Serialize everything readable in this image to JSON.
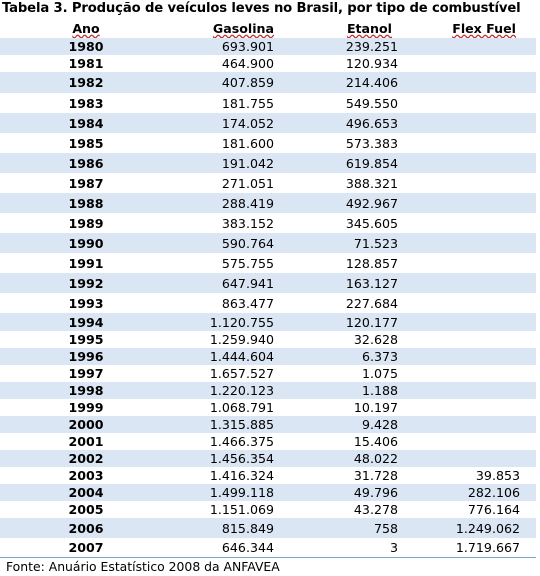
{
  "title": "Tabela 3. Produção de veículos leves no Brasil, por tipo de combustível",
  "columns": [
    "Ano",
    "Gasolina",
    "Etanol",
    "Flex Fuel"
  ],
  "rows": [
    {
      "ano": "1980",
      "gasolina": "693.901",
      "etanol": "239.251",
      "flex": ""
    },
    {
      "ano": "1981",
      "gasolina": "464.900",
      "etanol": "120.934",
      "flex": ""
    },
    {
      "ano": "1982",
      "gasolina": "407.859",
      "etanol": "214.406",
      "flex": ""
    },
    {
      "ano": "1983",
      "gasolina": "181.755",
      "etanol": "549.550",
      "flex": ""
    },
    {
      "ano": "1984",
      "gasolina": "174.052",
      "etanol": "496.653",
      "flex": ""
    },
    {
      "ano": "1985",
      "gasolina": "181.600",
      "etanol": "573.383",
      "flex": ""
    },
    {
      "ano": "1986",
      "gasolina": "191.042",
      "etanol": "619.854",
      "flex": ""
    },
    {
      "ano": "1987",
      "gasolina": "271.051",
      "etanol": "388.321",
      "flex": ""
    },
    {
      "ano": "1988",
      "gasolina": "288.419",
      "etanol": "492.967",
      "flex": ""
    },
    {
      "ano": "1989",
      "gasolina": "383.152",
      "etanol": "345.605",
      "flex": ""
    },
    {
      "ano": "1990",
      "gasolina": "590.764",
      "etanol": "71.523",
      "flex": ""
    },
    {
      "ano": "1991",
      "gasolina": "575.755",
      "etanol": "128.857",
      "flex": ""
    },
    {
      "ano": "1992",
      "gasolina": "647.941",
      "etanol": "163.127",
      "flex": ""
    },
    {
      "ano": "1993",
      "gasolina": "863.477",
      "etanol": "227.684",
      "flex": ""
    },
    {
      "ano": "1994",
      "gasolina": "1.120.755",
      "etanol": "120.177",
      "flex": ""
    },
    {
      "ano": "1995",
      "gasolina": "1.259.940",
      "etanol": "32.628",
      "flex": ""
    },
    {
      "ano": "1996",
      "gasolina": "1.444.604",
      "etanol": "6.373",
      "flex": ""
    },
    {
      "ano": "1997",
      "gasolina": "1.657.527",
      "etanol": "1.075",
      "flex": ""
    },
    {
      "ano": "1998",
      "gasolina": "1.220.123",
      "etanol": "1.188",
      "flex": ""
    },
    {
      "ano": "1999",
      "gasolina": "1.068.791",
      "etanol": "10.197",
      "flex": ""
    },
    {
      "ano": "2000",
      "gasolina": "1.315.885",
      "etanol": "9.428",
      "flex": ""
    },
    {
      "ano": "2001",
      "gasolina": "1.466.375",
      "etanol": "15.406",
      "flex": ""
    },
    {
      "ano": "2002",
      "gasolina": "1.456.354",
      "etanol": "48.022",
      "flex": ""
    },
    {
      "ano": "2003",
      "gasolina": "1.416.324",
      "etanol": "31.728",
      "flex": "39.853"
    },
    {
      "ano": "2004",
      "gasolina": "1.499.118",
      "etanol": "49.796",
      "flex": "282.106"
    },
    {
      "ano": "2005",
      "gasolina": "1.151.069",
      "etanol": "43.278",
      "flex": "776.164"
    },
    {
      "ano": "2006",
      "gasolina": "815.849",
      "etanol": "758",
      "flex": "1.249.062"
    },
    {
      "ano": "2007",
      "gasolina": "646.344",
      "etanol": "3",
      "flex": "1.719.667"
    }
  ],
  "footer": "Fonte: Anuário Estatístico 2008 da ANFAVEA",
  "colors": {
    "row_shade": "#dbe6f4",
    "rule": "#7ea6cf"
  }
}
